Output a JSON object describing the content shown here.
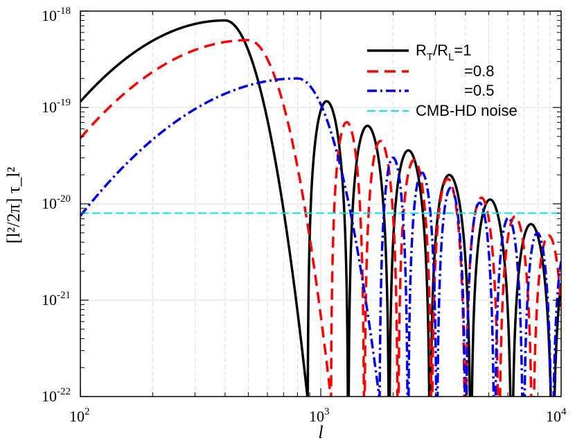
{
  "chart_data": {
    "type": "line",
    "title": "",
    "xlabel": "l",
    "ylabel": "[l²/2π] τ_l²",
    "xscale": "log",
    "yscale": "log",
    "xlim": [
      100,
      10000
    ],
    "ylim": [
      1e-22,
      1e-18
    ],
    "grid": true,
    "x_ticks": [
      {
        "base": "10",
        "exp": "2"
      },
      {
        "base": "10",
        "exp": "3"
      },
      {
        "base": "10",
        "exp": "4"
      }
    ],
    "y_ticks": [
      {
        "base": "10",
        "exp": "-22"
      },
      {
        "base": "10",
        "exp": "-21"
      },
      {
        "base": "10",
        "exp": "-20"
      },
      {
        "base": "10",
        "exp": "-19"
      },
      {
        "base": "10",
        "exp": "-18"
      }
    ],
    "legend_position": "top-right",
    "series": [
      {
        "name": "R_T/R_L=1",
        "legend_main": "R",
        "legend_sub1": "T",
        "legend_mid": "/R",
        "legend_sub2": "L",
        "legend_tail": "=1",
        "color": "#000000",
        "style": "solid",
        "peak_l": 400,
        "peak_value": 8e-19,
        "low_l_value": 1.15e-19,
        "first_zero_l": 880,
        "next_peak_value": 1.15e-19,
        "oscillation_period_log10": 0.17,
        "decay_exponent": 1.5
      },
      {
        "name": "=0.8",
        "legend_label": "=0.8",
        "color": "#ff0000",
        "style": "dashed",
        "peak_l": 500,
        "peak_value": 5e-19,
        "low_l_value": 4.8e-20,
        "first_zero_l": 1100,
        "next_peak_value": 7e-20,
        "oscillation_period_log10": 0.14,
        "decay_exponent": 1.4
      },
      {
        "name": "=0.5",
        "legend_label": "=0.5",
        "color": "#0000ee",
        "style": "dashdot",
        "peak_l": 800,
        "peak_value": 2e-19,
        "low_l_value": 7.5e-21,
        "first_zero_l": 1750,
        "next_peak_value": 3e-20,
        "oscillation_period_log10": 0.12,
        "decay_exponent": 1.3
      },
      {
        "name": "CMB-HD noise",
        "legend_label": "CMB-HD noise",
        "color": "#00e5ee",
        "style": "dashed-thin",
        "constant_value": 8e-21
      }
    ]
  }
}
